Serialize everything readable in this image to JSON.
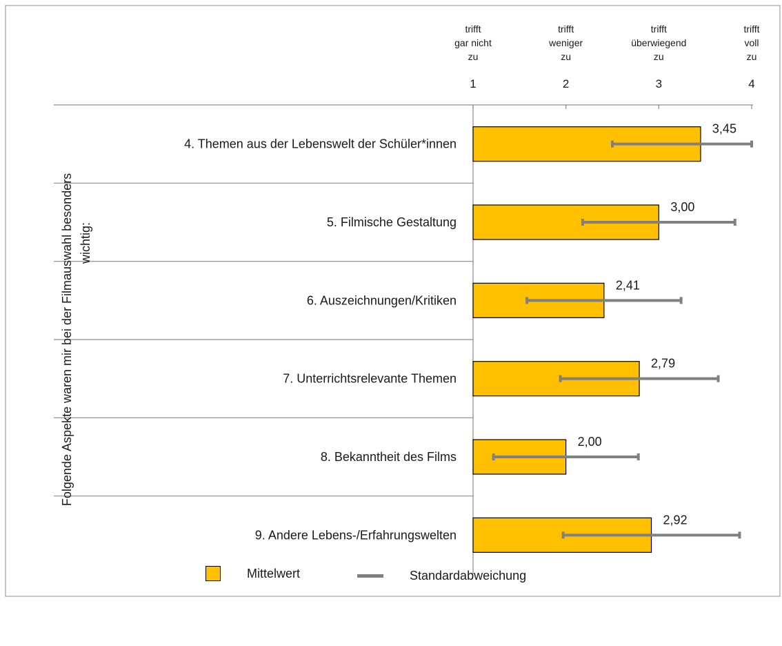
{
  "chart_data": {
    "type": "bar",
    "orientation": "horizontal",
    "ylabel": "Folgende Aspekte waren mir bei der Filmauswahl besonders wichtig:",
    "x_ticks": [
      {
        "value": 1,
        "label": "1",
        "caption": [
          "trifft",
          "gar nicht",
          "zu"
        ]
      },
      {
        "value": 2,
        "label": "2",
        "caption": [
          "trifft",
          "weniger",
          "zu"
        ]
      },
      {
        "value": 3,
        "label": "3",
        "caption": [
          "trifft",
          "überwiegend",
          "zu"
        ]
      },
      {
        "value": 4,
        "label": "4",
        "caption": [
          "trifft",
          "voll",
          "zu"
        ]
      }
    ],
    "xlim": [
      1,
      4
    ],
    "categories": [
      "4. Themen aus der Lebenswelt der Schüler*innen",
      "5. Filmische Gestaltung",
      "6. Auszeichnungen/Kritiken",
      "7. Unterrichtsrelevante Themen",
      "8. Bekanntheit des Films",
      "9. Andere Lebens-/Erfahrungswelten"
    ],
    "values": [
      3.45,
      3.0,
      2.41,
      2.79,
      2.0,
      2.92
    ],
    "value_labels": [
      "3,45",
      "3,00",
      "2,41",
      "2,79",
      "2,00",
      "2,92"
    ],
    "error_ranges": [
      [
        2.5,
        4.0
      ],
      [
        2.18,
        3.82
      ],
      [
        1.58,
        3.24
      ],
      [
        1.94,
        3.64
      ],
      [
        1.22,
        2.78
      ],
      [
        1.97,
        3.87
      ]
    ],
    "legend": {
      "mean_label": "Mittelwert",
      "sd_label": "Standardabweichung"
    },
    "colors": {
      "bar": "#FFC000",
      "error": "#808080",
      "axis": "#8c8c8c"
    },
    "grid": false
  }
}
